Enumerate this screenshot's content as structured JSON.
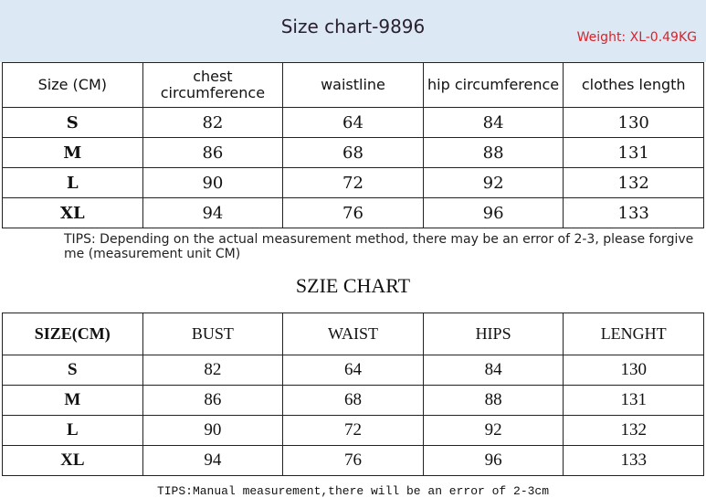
{
  "header": {
    "title": "Size chart-9896",
    "weight": "Weight: XL-0.49KG"
  },
  "table1": {
    "headers": [
      "Size (CM)",
      "chest circumference",
      "waistline",
      "hip circumference",
      "clothes length"
    ],
    "rows": [
      [
        "S",
        "82",
        "64",
        "84",
        "130"
      ],
      [
        "M",
        "86",
        "68",
        "88",
        "131"
      ],
      [
        "L",
        "90",
        "72",
        "92",
        "132"
      ],
      [
        "XL",
        "94",
        "76",
        "96",
        "133"
      ]
    ]
  },
  "tips1": "TIPS: Depending on the actual measurement method, there may be an error of 2-3, please forgive me (measurement unit CM)",
  "subtitle": "SZIE CHART",
  "table2": {
    "headers": [
      "SIZE(CM)",
      "BUST",
      "WAIST",
      "HIPS",
      "LENGHT"
    ],
    "rows": [
      [
        "S",
        "82",
        "64",
        "84",
        "130"
      ],
      [
        "M",
        "86",
        "68",
        "88",
        "131"
      ],
      [
        "L",
        "90",
        "72",
        "92",
        "132"
      ],
      [
        "XL",
        "94",
        "76",
        "96",
        "133"
      ]
    ]
  },
  "tips2": "TIPS:Manual measurement,there will be an error of 2-3cm",
  "colors": {
    "header_bg": "#dce8f4",
    "weight_text": "#d8232a"
  }
}
